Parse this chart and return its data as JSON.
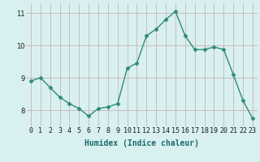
{
  "x": [
    0,
    1,
    2,
    3,
    4,
    5,
    6,
    7,
    8,
    9,
    10,
    11,
    12,
    13,
    14,
    15,
    16,
    17,
    18,
    19,
    20,
    21,
    22,
    23
  ],
  "y": [
    8.9,
    9.0,
    8.7,
    8.4,
    8.2,
    8.05,
    7.82,
    8.05,
    8.1,
    8.2,
    9.3,
    9.45,
    10.3,
    10.5,
    10.8,
    11.05,
    10.3,
    9.87,
    9.87,
    9.95,
    9.87,
    9.1,
    8.3,
    7.75
  ],
  "xlabel": "Humidex (Indice chaleur)",
  "ylim": [
    7.5,
    11.3
  ],
  "xlim": [
    -0.5,
    23.5
  ],
  "yticks": [
    8,
    9,
    10,
    11
  ],
  "bg_color": "#d8f0f0",
  "line_color": "#2e8b78",
  "grid_color": "#c8a8a8",
  "markersize": 2.5,
  "linewidth": 1.0,
  "xlabel_color": "#1a6b6b",
  "tick_color": "#1a1a1a",
  "ylabel_fontsize": 6,
  "xlabel_fontsize": 7,
  "tick_fontsize": 6
}
